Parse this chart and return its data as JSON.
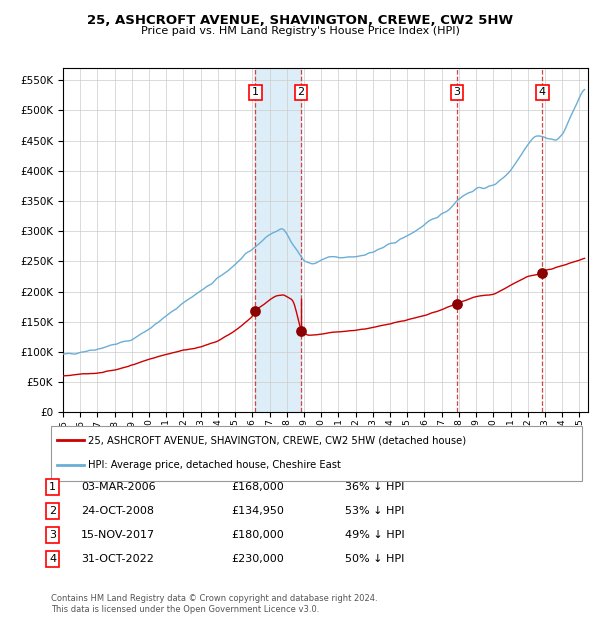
{
  "title1": "25, ASHCROFT AVENUE, SHAVINGTON, CREWE, CW2 5HW",
  "title2": "Price paid vs. HM Land Registry's House Price Index (HPI)",
  "legend_line1": "25, ASHCROFT AVENUE, SHAVINGTON, CREWE, CW2 5HW (detached house)",
  "legend_line2": "HPI: Average price, detached house, Cheshire East",
  "footer1": "Contains HM Land Registry data © Crown copyright and database right 2024.",
  "footer2": "This data is licensed under the Open Government Licence v3.0.",
  "sales": [
    {
      "num": 1,
      "date": "03-MAR-2006",
      "price": 168000,
      "pct": "36%",
      "x_year": 2006.17
    },
    {
      "num": 2,
      "date": "24-OCT-2008",
      "price": 134950,
      "pct": "53%",
      "x_year": 2008.82
    },
    {
      "num": 3,
      "date": "15-NOV-2017",
      "price": 180000,
      "pct": "49%",
      "x_year": 2017.88
    },
    {
      "num": 4,
      "date": "31-OCT-2022",
      "price": 230000,
      "pct": "50%",
      "x_year": 2022.84
    }
  ],
  "hpi_color": "#6baed6",
  "price_color": "#cc0000",
  "marker_color": "#8b0000",
  "shade_color": "#ddeef8",
  "vline_color_sale": "#cc3333",
  "ylim": [
    0,
    570000
  ],
  "xlim_start": 1995.0,
  "xlim_end": 2025.5,
  "bg_color": "#ffffff",
  "grid_color": "#cccccc",
  "yticks": [
    0,
    50000,
    100000,
    150000,
    200000,
    250000,
    300000,
    350000,
    400000,
    450000,
    500000,
    550000
  ]
}
